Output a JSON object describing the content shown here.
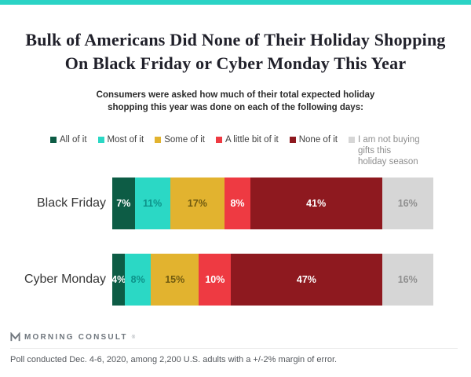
{
  "accent_color": "#2bd3c5",
  "header": {
    "title_line1": "Bulk of Americans Did None of Their Holiday Shopping",
    "title_line2": "On Black Friday or Cyber Monday This Year",
    "subtitle_line1": "Consumers were asked how much of their total expected holiday",
    "subtitle_line2": "shopping this year was done on each of the following days:"
  },
  "chart_data": {
    "type": "bar",
    "orientation": "horizontal-stacked",
    "categories": [
      "Black Friday",
      "Cyber Monday"
    ],
    "series": [
      {
        "name": "All of it",
        "color": "#0d5c45",
        "label_color": "#ffffff",
        "values": [
          7,
          4
        ]
      },
      {
        "name": "Most of it",
        "color": "#2bd8c5",
        "label_color": "#0d9289",
        "values": [
          11,
          8
        ]
      },
      {
        "name": "Some of it",
        "color": "#e2b32f",
        "label_color": "#6f5a10",
        "values": [
          17,
          15
        ]
      },
      {
        "name": "A little bit of it",
        "color": "#ee3a42",
        "label_color": "#ffffff",
        "values": [
          8,
          10
        ]
      },
      {
        "name": "None of it",
        "color": "#8e191f",
        "label_color": "#ffffff",
        "values": [
          41,
          47
        ]
      },
      {
        "name": "I am not buying gifts this holiday season",
        "color": "#d6d6d6",
        "label_color": "#8f8f8f",
        "values": [
          16,
          16
        ]
      }
    ],
    "value_suffix": "%",
    "xlim": [
      0,
      100
    ],
    "grid": false,
    "legend_position": "top"
  },
  "footer": {
    "logo_text": "MORNING CONSULT",
    "logo_tm": "®",
    "note": "Poll conducted Dec. 4-6, 2020, among 2,200 U.S. adults with a +/-2% margin of error."
  }
}
